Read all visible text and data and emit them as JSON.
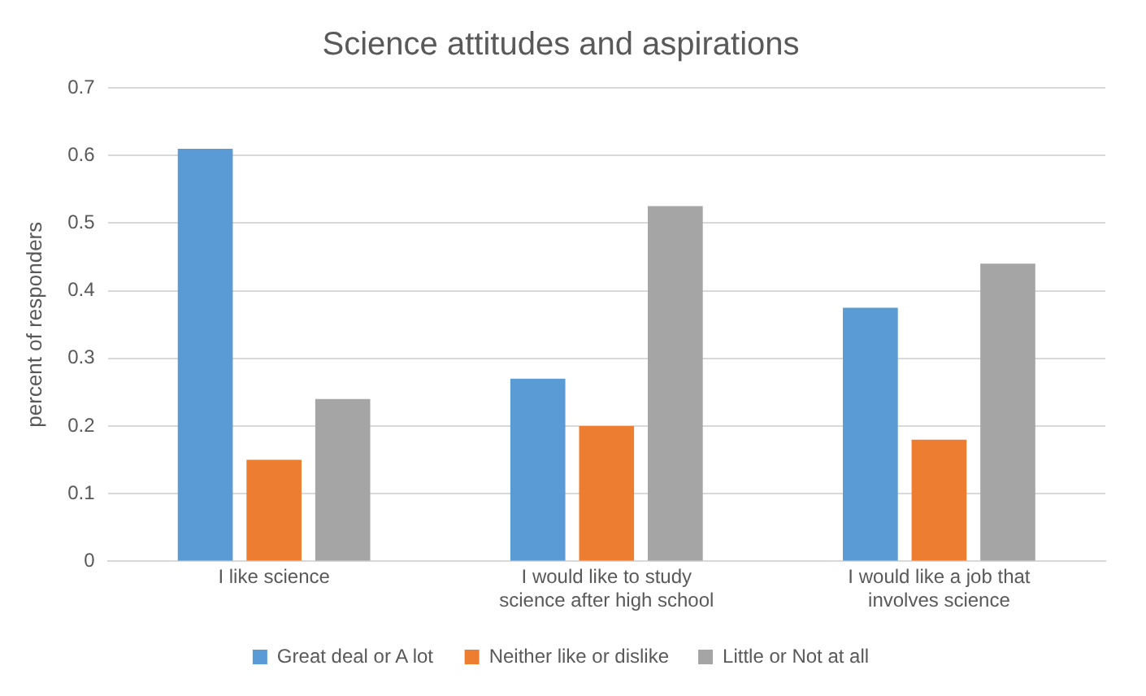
{
  "chart_data": {
    "type": "bar",
    "title": "Science attitudes and aspirations",
    "ylabel": "percent of responders",
    "categories": [
      "I like science",
      "I would like to study science after high school",
      "I would like a job that involves science"
    ],
    "series": [
      {
        "name": "Great deal or A lot",
        "color": "#5b9bd5",
        "values": [
          0.61,
          0.27,
          0.375
        ]
      },
      {
        "name": "Neither like or dislike",
        "color": "#ed7d31",
        "values": [
          0.15,
          0.2,
          0.18
        ]
      },
      {
        "name": "Little or Not at all",
        "color": "#a5a5a5",
        "values": [
          0.24,
          0.525,
          0.44
        ]
      }
    ],
    "ylim": [
      0,
      0.7
    ],
    "yticks": [
      0,
      0.1,
      0.2,
      0.3,
      0.4,
      0.5,
      0.6,
      0.7
    ],
    "grid": "y",
    "legend": "bottom"
  }
}
